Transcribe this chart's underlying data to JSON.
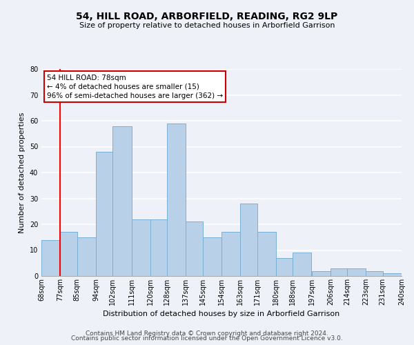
{
  "title": "54, HILL ROAD, ARBORFIELD, READING, RG2 9LP",
  "subtitle": "Size of property relative to detached houses in Arborfield Garrison",
  "xlabel": "Distribution of detached houses by size in Arborfield Garrison",
  "ylabel": "Number of detached properties",
  "bin_edges": [
    68,
    77,
    85,
    94,
    102,
    111,
    120,
    128,
    137,
    145,
    154,
    163,
    171,
    180,
    188,
    197,
    206,
    214,
    223,
    231,
    240
  ],
  "counts": [
    14,
    17,
    15,
    48,
    58,
    22,
    22,
    59,
    21,
    15,
    17,
    28,
    17,
    7,
    9,
    2,
    3,
    3,
    2,
    1
  ],
  "bar_color": "#b8d0e8",
  "bar_edge_color": "#7aafd4",
  "reference_line_x": 77,
  "reference_line_color": "red",
  "annotation_line1": "54 HILL ROAD: 78sqm",
  "annotation_line2": "← 4% of detached houses are smaller (15)",
  "annotation_line3": "96% of semi-detached houses are larger (362) →",
  "annotation_box_color": "white",
  "annotation_box_edge_color": "#cc0000",
  "ylim": [
    0,
    80
  ],
  "yticks": [
    0,
    10,
    20,
    30,
    40,
    50,
    60,
    70,
    80
  ],
  "x_tick_labels": [
    "68sqm",
    "77sqm",
    "85sqm",
    "94sqm",
    "102sqm",
    "111sqm",
    "120sqm",
    "128sqm",
    "137sqm",
    "145sqm",
    "154sqm",
    "163sqm",
    "171sqm",
    "180sqm",
    "188sqm",
    "197sqm",
    "206sqm",
    "214sqm",
    "223sqm",
    "231sqm",
    "240sqm"
  ],
  "footer_line1": "Contains HM Land Registry data © Crown copyright and database right 2024.",
  "footer_line2": "Contains public sector information licensed under the Open Government Licence v3.0.",
  "background_color": "#eef2f8",
  "grid_color": "white",
  "title_fontsize": 10,
  "subtitle_fontsize": 8,
  "xlabel_fontsize": 8,
  "ylabel_fontsize": 8,
  "tick_fontsize": 7,
  "footer_fontsize": 6.5
}
